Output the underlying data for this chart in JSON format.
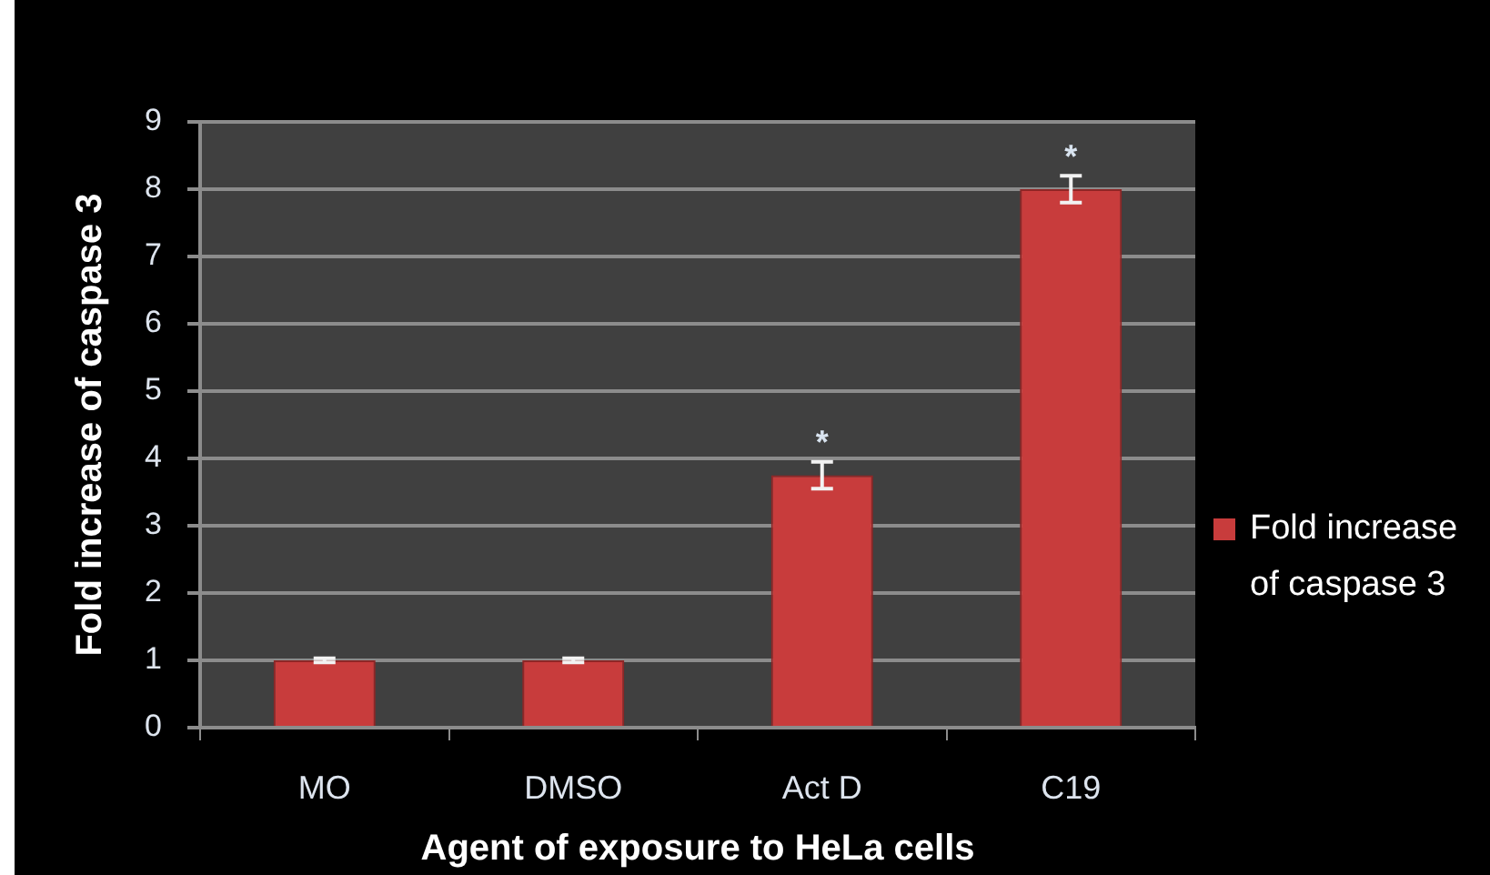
{
  "chart_data": {
    "type": "bar",
    "xlabel": "Agent of exposure to HeLa cells",
    "ylabel": "Fold increase of caspase 3",
    "categories": [
      "MO",
      "DMSO",
      "Act D",
      "C19"
    ],
    "series": [
      {
        "name": "Fold increase of caspase 3",
        "color": "#c83c3c",
        "values": [
          1.0,
          1.0,
          3.75,
          8.0
        ],
        "errors": [
          0.03,
          0.03,
          0.2,
          0.2
        ]
      }
    ],
    "ylim": [
      0,
      9
    ],
    "yticks": [
      0,
      1,
      2,
      3,
      4,
      5,
      6,
      7,
      8,
      9
    ],
    "grid": "y",
    "legend": "right",
    "annotations": [
      {
        "text": "*",
        "x": "Act D",
        "y": 3.75
      },
      {
        "text": "*",
        "x": "C19",
        "y": 8.0
      }
    ]
  }
}
